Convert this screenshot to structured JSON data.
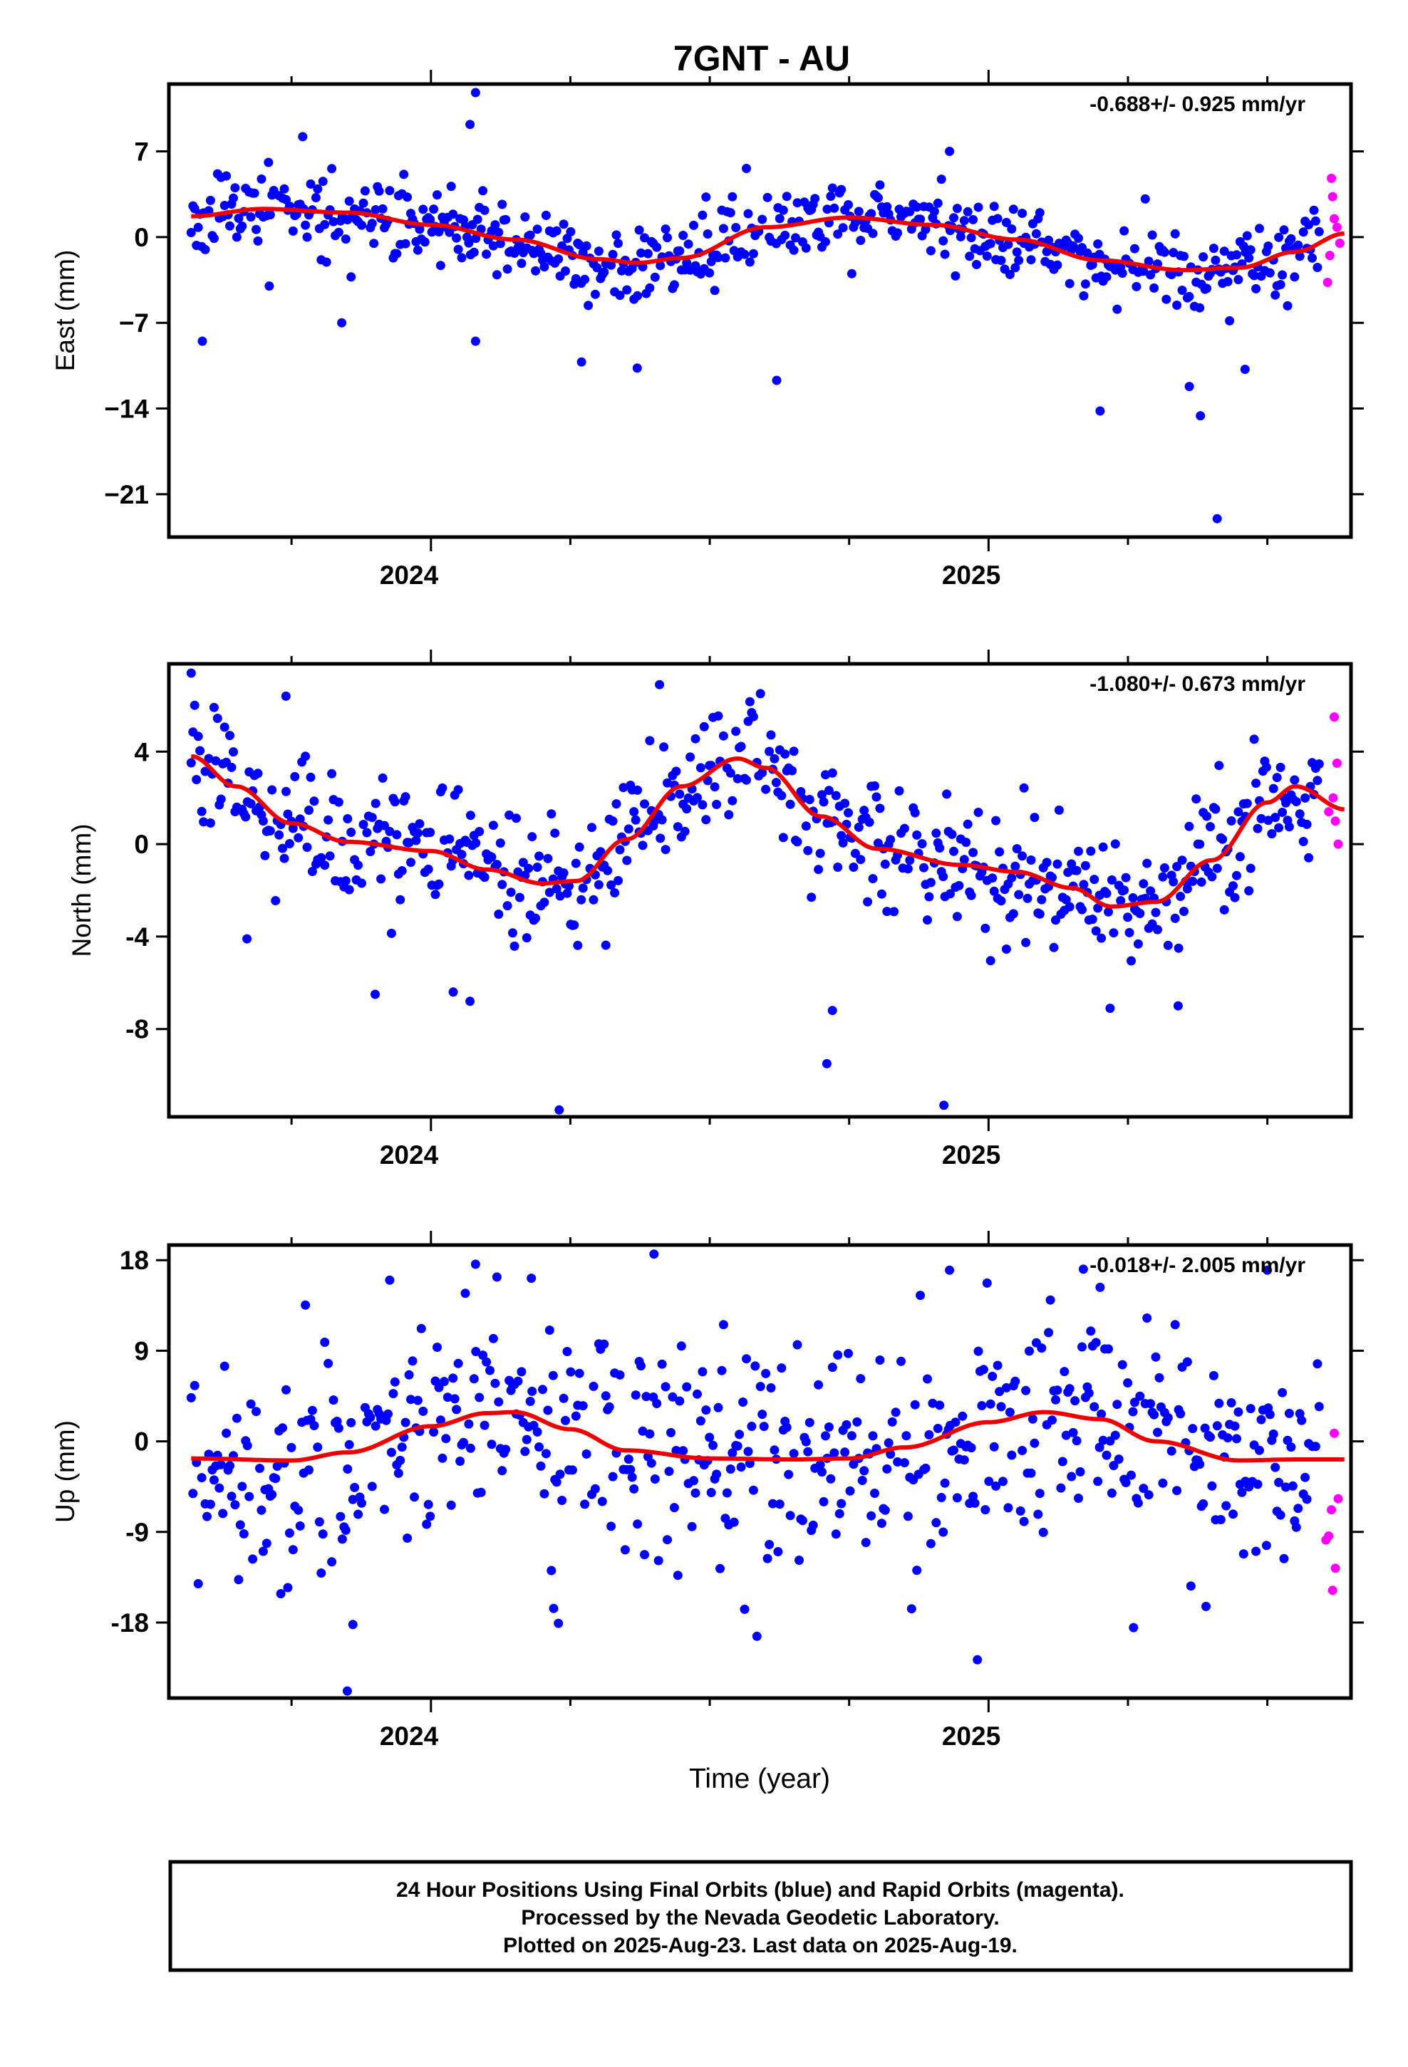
{
  "title": "7GNT - AU",
  "x_axis": {
    "label": "Time (year)",
    "range": [
      2023.53,
      2025.65
    ],
    "major_ticks": [
      2024,
      2025
    ],
    "minor_ticks": [
      2023.75,
      2024.25,
      2024.5,
      2024.75,
      2025.25,
      2025.5
    ]
  },
  "colors": {
    "final": "#0000ff",
    "rapid": "#ff00ff",
    "fit": "#ee0000",
    "axis": "#000000"
  },
  "footer": {
    "line1": "24 Hour Positions Using Final Orbits (blue) and Rapid Orbits (magenta).",
    "line2": "Processed by the Nevada Geodetic Laboratory.",
    "line3": "Plotted on 2025-Aug-23. Last data on 2025-Aug-19."
  },
  "chart_data": [
    {
      "type": "scatter",
      "id": "east",
      "ylabel": "East (mm)",
      "rate": "-0.688+/- 0.925 mm/yr",
      "ylim": [
        -24.5,
        12.5
      ],
      "yticks": [
        7,
        0,
        -7,
        -14,
        -21
      ],
      "ytick_labels": [
        "7",
        "0",
        "−7",
        "−14",
        "−21"
      ],
      "fit": {
        "x": [
          2023.57,
          2023.7,
          2023.85,
          2024.0,
          2024.15,
          2024.3,
          2024.37,
          2024.45,
          2024.6,
          2024.75,
          2024.9,
          2025.05,
          2025.2,
          2025.35,
          2025.45,
          2025.55,
          2025.64
        ],
        "y": [
          1.7,
          2.3,
          2.0,
          1.0,
          -0.2,
          -1.8,
          -2.1,
          -1.7,
          0.8,
          1.6,
          1.0,
          -0.2,
          -1.9,
          -2.7,
          -2.5,
          -1.2,
          0.3
        ]
      },
      "outliers": [
        {
          "x": 2023.59,
          "y": -8.5
        },
        {
          "x": 2023.71,
          "y": -4.0
        },
        {
          "x": 2023.77,
          "y": 8.2
        },
        {
          "x": 2023.84,
          "y": -7.0
        },
        {
          "x": 2024.07,
          "y": 9.2
        },
        {
          "x": 2024.08,
          "y": 11.8
        },
        {
          "x": 2024.08,
          "y": -8.5
        },
        {
          "x": 2024.27,
          "y": -10.2
        },
        {
          "x": 2024.37,
          "y": -10.7
        },
        {
          "x": 2024.62,
          "y": -11.7
        },
        {
          "x": 2024.93,
          "y": 7.0
        },
        {
          "x": 2025.2,
          "y": -14.2
        },
        {
          "x": 2025.36,
          "y": -12.2
        },
        {
          "x": 2025.38,
          "y": -14.6
        },
        {
          "x": 2025.41,
          "y": -23.0
        },
        {
          "x": 2025.46,
          "y": -10.8
        }
      ],
      "rapid": [
        {
          "x": 2025.615,
          "y": 4.8
        },
        {
          "x": 2025.617,
          "y": 3.3
        },
        {
          "x": 2025.62,
          "y": 1.5
        },
        {
          "x": 2025.608,
          "y": -3.7
        },
        {
          "x": 2025.612,
          "y": -1.5
        },
        {
          "x": 2025.625,
          "y": 0.8
        },
        {
          "x": 2025.63,
          "y": -0.5
        }
      ],
      "noise": {
        "sigma": 1.6,
        "seed": 11
      }
    },
    {
      "type": "scatter",
      "id": "north",
      "ylabel": "North (mm)",
      "rate": "-1.080+/- 0.673 mm/yr",
      "ylim": [
        -11.8,
        7.8
      ],
      "yticks": [
        4,
        0,
        -4,
        -8
      ],
      "ytick_labels": [
        "4",
        "0",
        "-4",
        "-8"
      ],
      "fit": {
        "x": [
          2023.57,
          2023.65,
          2023.75,
          2023.85,
          2024.0,
          2024.1,
          2024.2,
          2024.26,
          2024.35,
          2024.45,
          2024.55,
          2024.6,
          2024.7,
          2024.8,
          2024.95,
          2025.05,
          2025.15,
          2025.22,
          2025.3,
          2025.4,
          2025.5,
          2025.55,
          2025.64
        ],
        "y": [
          3.8,
          2.5,
          0.9,
          0.1,
          -0.3,
          -1.1,
          -1.7,
          -1.6,
          0.2,
          2.5,
          3.7,
          3.3,
          1.2,
          -0.2,
          -0.9,
          -1.2,
          -1.9,
          -2.7,
          -2.5,
          -0.7,
          1.8,
          2.5,
          1.5
        ]
      },
      "outliers": [
        {
          "x": 2023.57,
          "y": 7.4
        },
        {
          "x": 2023.74,
          "y": 6.4
        },
        {
          "x": 2023.67,
          "y": -4.1
        },
        {
          "x": 2023.9,
          "y": -6.5
        },
        {
          "x": 2024.04,
          "y": -6.4
        },
        {
          "x": 2024.07,
          "y": -6.8
        },
        {
          "x": 2024.23,
          "y": -11.5
        },
        {
          "x": 2024.41,
          "y": 6.9
        },
        {
          "x": 2024.72,
          "y": -7.2
        },
        {
          "x": 2024.71,
          "y": -9.5
        },
        {
          "x": 2024.92,
          "y": -11.3
        },
        {
          "x": 2025.34,
          "y": -7.0
        }
      ],
      "rapid": [
        {
          "x": 2025.62,
          "y": 5.5
        },
        {
          "x": 2025.625,
          "y": 3.5
        },
        {
          "x": 2025.618,
          "y": 2.0
        },
        {
          "x": 2025.61,
          "y": 1.4
        },
        {
          "x": 2025.622,
          "y": 1.0
        },
        {
          "x": 2025.627,
          "y": 0.0
        }
      ],
      "noise": {
        "sigma": 1.35,
        "seed": 29
      }
    },
    {
      "type": "scatter",
      "id": "up",
      "ylabel": "Up (mm)",
      "rate": "-0.018+/- 2.005 mm/yr",
      "ylim": [
        -25.5,
        19.5
      ],
      "yticks": [
        18,
        9,
        0,
        -9,
        -18
      ],
      "ytick_labels": [
        "18",
        "9",
        "0",
        "-9",
        "-18"
      ],
      "fit": {
        "x": [
          2023.57,
          2023.75,
          2023.85,
          2024.0,
          2024.1,
          2024.15,
          2024.25,
          2024.35,
          2024.5,
          2024.65,
          2024.75,
          2024.85,
          2025.0,
          2025.1,
          2025.2,
          2025.3,
          2025.45,
          2025.55,
          2025.64
        ],
        "y": [
          -1.7,
          -1.9,
          -1.1,
          1.5,
          2.8,
          2.9,
          1.2,
          -0.9,
          -1.7,
          -1.8,
          -1.7,
          -0.6,
          1.9,
          2.9,
          2.2,
          0.0,
          -1.9,
          -1.8,
          -1.8
        ]
      },
      "outliers": [
        {
          "x": 2023.85,
          "y": -24.8
        },
        {
          "x": 2023.86,
          "y": -18.2
        },
        {
          "x": 2024.08,
          "y": 17.6
        },
        {
          "x": 2024.4,
          "y": 18.6
        },
        {
          "x": 2024.18,
          "y": 16.2
        },
        {
          "x": 2024.22,
          "y": -16.6
        },
        {
          "x": 2024.98,
          "y": -21.7
        },
        {
          "x": 2024.93,
          "y": 17.0
        },
        {
          "x": 2025.17,
          "y": 17.1
        },
        {
          "x": 2025.2,
          "y": 15.3
        },
        {
          "x": 2025.26,
          "y": -18.5
        },
        {
          "x": 2025.5,
          "y": 17.0
        },
        {
          "x": 2025.39,
          "y": -16.4
        }
      ],
      "rapid": [
        {
          "x": 2025.62,
          "y": 0.8
        },
        {
          "x": 2025.627,
          "y": -5.7
        },
        {
          "x": 2025.615,
          "y": -6.8
        },
        {
          "x": 2025.61,
          "y": -9.4
        },
        {
          "x": 2025.605,
          "y": -9.8
        },
        {
          "x": 2025.622,
          "y": -12.6
        },
        {
          "x": 2025.617,
          "y": -14.8
        }
      ],
      "noise": {
        "sigma": 5.6,
        "seed": 47
      }
    }
  ]
}
